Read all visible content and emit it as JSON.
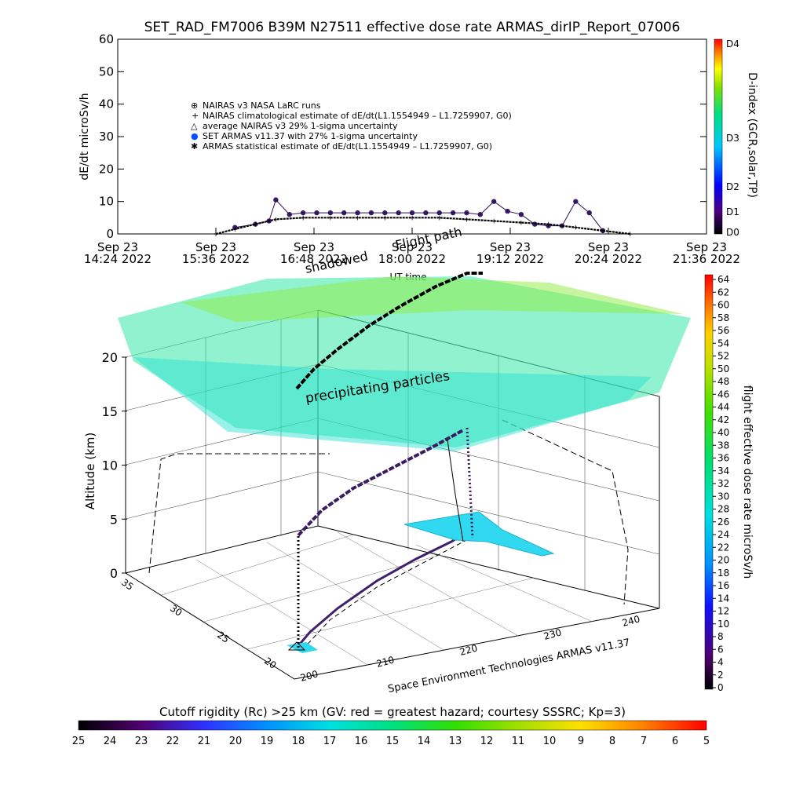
{
  "title": "SET_RAD_FM7006   B39M N27511 effective dose rate ARMAS_dirIP_Report_07006",
  "top_chart": {
    "ylabel": "dE/dt microSv/h",
    "yticks": [
      "0",
      "10",
      "20",
      "30",
      "40",
      "50",
      "60"
    ],
    "xticks": [
      {
        "line1": "Sep 23",
        "line2": "14:24 2022"
      },
      {
        "line1": "Sep 23",
        "line2": "15:36 2022"
      },
      {
        "line1": "Sep 23",
        "line2": "16:48 2022"
      },
      {
        "line1": "Sep 23",
        "line2": "18:00 2022"
      },
      {
        "line1": "Sep 23",
        "line2": "19:12 2022"
      },
      {
        "line1": "Sep 23",
        "line2": "20:24 2022"
      },
      {
        "line1": "Sep 23",
        "line2": "21:36 2022"
      }
    ],
    "xlabel": "UT time",
    "legend": [
      {
        "symbol": "⊕",
        "text": "NAIRAS v3 NASA LaRC runs"
      },
      {
        "symbol": "+",
        "text": "NAIRAS climatological estimate of dE/dt(L1.1554949 – L1.7259907, G0)"
      },
      {
        "symbol": "△",
        "text": "average NAIRAS v3 29% 1-sigma uncertainty"
      },
      {
        "symbol": "●",
        "text": "SET ARMAS v11.37 with 27% 1-sigma uncertainty"
      },
      {
        "symbol": "✱",
        "text": "ARMAS statistical estimate of dE/dt(L1.1554949 – L1.7259907, G0)"
      }
    ],
    "dindex_label": "D-index (GCR,solar,TP)",
    "dindex_ticks": [
      "D4",
      "D3",
      "D2",
      "D1",
      "D0"
    ]
  },
  "overlay_labels": {
    "flight_path": "Flight path",
    "shadowed": "shadowed",
    "precipitating": "precipitating particles"
  },
  "three_d": {
    "zlabel": "Altitude (km)",
    "zticks": [
      "0",
      "5",
      "10",
      "15",
      "20"
    ],
    "lat_ticks": [
      "35",
      "30",
      "25",
      "20"
    ],
    "lon_ticks": [
      "200",
      "210",
      "220",
      "230",
      "240"
    ],
    "credit": "Space Environment Technologies ARMAS v11.37"
  },
  "right_colorbar": {
    "label": "flight effective dose rate microSv/h",
    "ticks": [
      "64",
      "62",
      "60",
      "58",
      "56",
      "54",
      "52",
      "50",
      "48",
      "46",
      "44",
      "42",
      "40",
      "38",
      "36",
      "34",
      "32",
      "30",
      "28",
      "26",
      "24",
      "22",
      "20",
      "18",
      "16",
      "14",
      "12",
      "10",
      "8",
      "6",
      "4",
      "2",
      "0"
    ]
  },
  "bottom_colorbar": {
    "title": "Cutoff rigidity (Rc) >25 km (GV: red = greatest hazard; courtesy SSSRC; Kp=3)",
    "ticks": [
      "25",
      "24",
      "23",
      "22",
      "21",
      "20",
      "19",
      "18",
      "17",
      "16",
      "15",
      "14",
      "13",
      "12",
      "11",
      "10",
      "9",
      "8",
      "7",
      "6",
      "5"
    ]
  },
  "chart_data": {
    "type": "scatter",
    "title": "SET_RAD_FM7006   B39M N27511 effective dose rate ARMAS_dirIP_Report_07006",
    "xlabel": "UT time",
    "ylabel": "dE/dt microSv/h",
    "ylim": [
      0,
      60
    ],
    "xlim": [
      "2022-09-23 14:24",
      "2022-09-23 21:36"
    ],
    "series": [
      {
        "name": "SET ARMAS v11.37 with 27% 1-sigma uncertainty",
        "x": [
          "15:50",
          "16:05",
          "16:15",
          "16:20",
          "16:30",
          "16:40",
          "16:50",
          "17:00",
          "17:10",
          "17:20",
          "17:30",
          "17:40",
          "17:50",
          "18:00",
          "18:10",
          "18:20",
          "18:30",
          "18:40",
          "18:50",
          "19:00",
          "19:10",
          "19:20",
          "19:30",
          "19:40",
          "19:50",
          "20:00",
          "20:10",
          "20:20"
        ],
        "y": [
          2,
          3,
          4,
          10.5,
          6,
          6.5,
          6.5,
          6.5,
          6.5,
          6.5,
          6.5,
          6.5,
          6.5,
          6.5,
          6.5,
          6.5,
          6.5,
          6.5,
          6,
          10,
          7,
          6,
          3,
          2.5,
          2.5,
          10,
          6.5,
          1
        ]
      },
      {
        "name": "NAIRAS climatological estimate of dE/dt(L1.1554949 – L1.7259907, G0)",
        "x": [
          "15:36",
          "15:50",
          "16:05",
          "16:20",
          "16:40",
          "17:00",
          "17:20",
          "17:40",
          "18:00",
          "18:20",
          "18:40",
          "19:00",
          "19:20",
          "19:40",
          "20:00",
          "20:20",
          "20:40"
        ],
        "y": [
          0,
          1.5,
          3,
          4.5,
          5,
          5,
          5,
          5,
          5,
          5,
          4.5,
          4,
          3.5,
          3,
          2,
          1,
          0
        ]
      }
    ]
  }
}
